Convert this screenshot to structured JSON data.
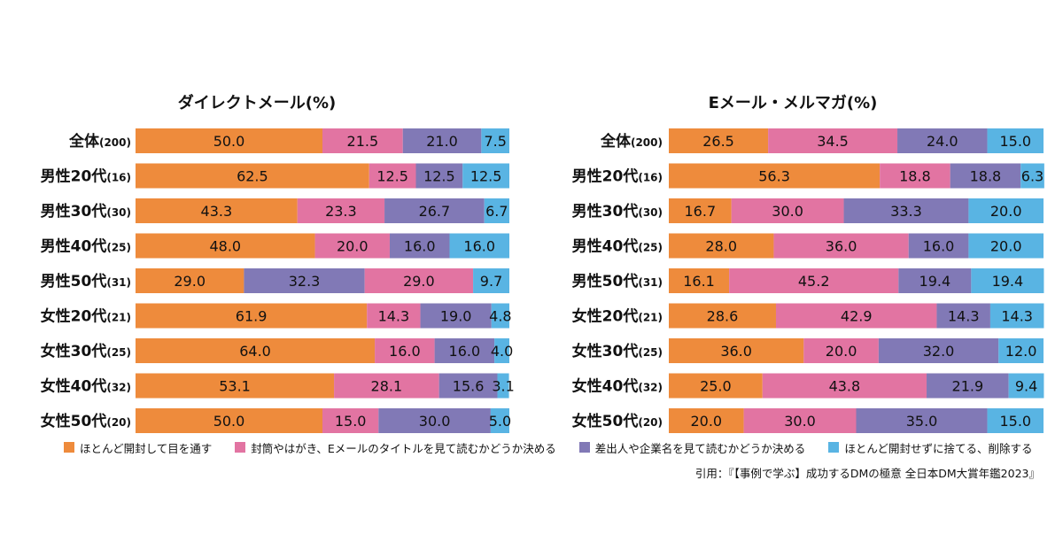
{
  "colors": [
    "#EE8B3C",
    "#E274A2",
    "#8179B6",
    "#59B4E3"
  ],
  "legend": [
    "ほとんど開封して目を通す",
    "封筒やはがき、Eメールのタイトルを見て読むかどうか決める",
    "差出人や企業名を見て読むかどうか決める",
    "ほとんど開封せずに捨てる、削除する"
  ],
  "citation": "引用：『【事例で学ぶ】成功するDMの極意 全日本DM大賞年鑑2023』",
  "chart_data": [
    {
      "type": "bar",
      "stacked": true,
      "orientation": "horizontal",
      "title": "ダイレクトメール(%)",
      "categories": [
        {
          "name": "全体",
          "n": "(200)"
        },
        {
          "name": "男性20代",
          "n": "(16)"
        },
        {
          "name": "男性30代",
          "n": "(30)"
        },
        {
          "name": "男性40代",
          "n": "(25)"
        },
        {
          "name": "男性50代",
          "n": "(31)"
        },
        {
          "name": "女性20代",
          "n": "(21)"
        },
        {
          "name": "女性30代",
          "n": "(25)"
        },
        {
          "name": "女性40代",
          "n": "(32)"
        },
        {
          "name": "女性50代",
          "n": "(20)"
        }
      ],
      "series": [
        {
          "name": "ほとんど開封して目を通す",
          "values": [
            "50.0",
            "62.5",
            "43.3",
            "48.0",
            "29.0",
            "61.9",
            "64.0",
            "53.1",
            "50.0"
          ]
        },
        {
          "name": "封筒やはがき、Eメールのタイトルを見て読むかどうか決める",
          "values": [
            "21.5",
            "12.5",
            "23.3",
            "20.0",
            "29.0",
            "14.3",
            "16.0",
            "28.1",
            "15.0"
          ]
        },
        {
          "name": "差出人や企業名を見て読むかどうか決める",
          "values": [
            "21.0",
            "12.5",
            "26.7",
            "16.0",
            "32.3",
            "19.0",
            "16.0",
            "15.6",
            "30.0"
          ]
        },
        {
          "name": "ほとんど開封せずに捨てる、削除する",
          "values": [
            "7.5",
            "12.5",
            "6.7",
            "16.0",
            "9.7",
            "4.8",
            "4.0",
            "3.1",
            "5.0"
          ]
        }
      ],
      "segment_order": [
        [
          0,
          1,
          2,
          3
        ],
        [
          0,
          1,
          2,
          3
        ],
        [
          0,
          1,
          2,
          3
        ],
        [
          0,
          1,
          2,
          3
        ],
        [
          0,
          2,
          1,
          3
        ],
        [
          0,
          1,
          2,
          3
        ],
        [
          0,
          1,
          2,
          3
        ],
        [
          0,
          1,
          2,
          3
        ],
        [
          0,
          1,
          2,
          3
        ]
      ],
      "xlim": [
        0,
        100
      ]
    },
    {
      "type": "bar",
      "stacked": true,
      "orientation": "horizontal",
      "title": "Eメール・メルマガ(%)",
      "categories": [
        {
          "name": "全体",
          "n": "(200)"
        },
        {
          "name": "男性20代",
          "n": "(16)"
        },
        {
          "name": "男性30代",
          "n": "(30)"
        },
        {
          "name": "男性40代",
          "n": "(25)"
        },
        {
          "name": "男性50代",
          "n": "(31)"
        },
        {
          "name": "女性20代",
          "n": "(21)"
        },
        {
          "name": "女性30代",
          "n": "(25)"
        },
        {
          "name": "女性40代",
          "n": "(32)"
        },
        {
          "name": "女性50代",
          "n": "(20)"
        }
      ],
      "series": [
        {
          "name": "ほとんど開封して目を通す",
          "values": [
            "26.5",
            "56.3",
            "16.7",
            "28.0",
            "16.1",
            "28.6",
            "36.0",
            "25.0",
            "20.0"
          ]
        },
        {
          "name": "封筒やはがき、Eメールのタイトルを見て読むかどうか決める",
          "values": [
            "34.5",
            "18.8",
            "30.0",
            "36.0",
            "45.2",
            "42.9",
            "20.0",
            "43.8",
            "30.0"
          ]
        },
        {
          "name": "差出人や企業名を見て読むかどうか決める",
          "values": [
            "24.0",
            "18.8",
            "33.3",
            "16.0",
            "19.4",
            "14.3",
            "32.0",
            "21.9",
            "35.0"
          ]
        },
        {
          "name": "ほとんど開封せずに捨てる、削除する",
          "values": [
            "15.0",
            "6.3",
            "20.0",
            "20.0",
            "19.4",
            "14.3",
            "12.0",
            "9.4",
            "15.0"
          ]
        }
      ],
      "segment_order": [
        [
          0,
          1,
          2,
          3
        ],
        [
          0,
          1,
          2,
          3
        ],
        [
          0,
          1,
          2,
          3
        ],
        [
          0,
          1,
          2,
          3
        ],
        [
          0,
          1,
          2,
          3
        ],
        [
          0,
          1,
          2,
          3
        ],
        [
          0,
          1,
          2,
          3
        ],
        [
          0,
          1,
          2,
          3
        ],
        [
          0,
          1,
          2,
          3
        ]
      ],
      "xlim": [
        0,
        100
      ]
    }
  ]
}
